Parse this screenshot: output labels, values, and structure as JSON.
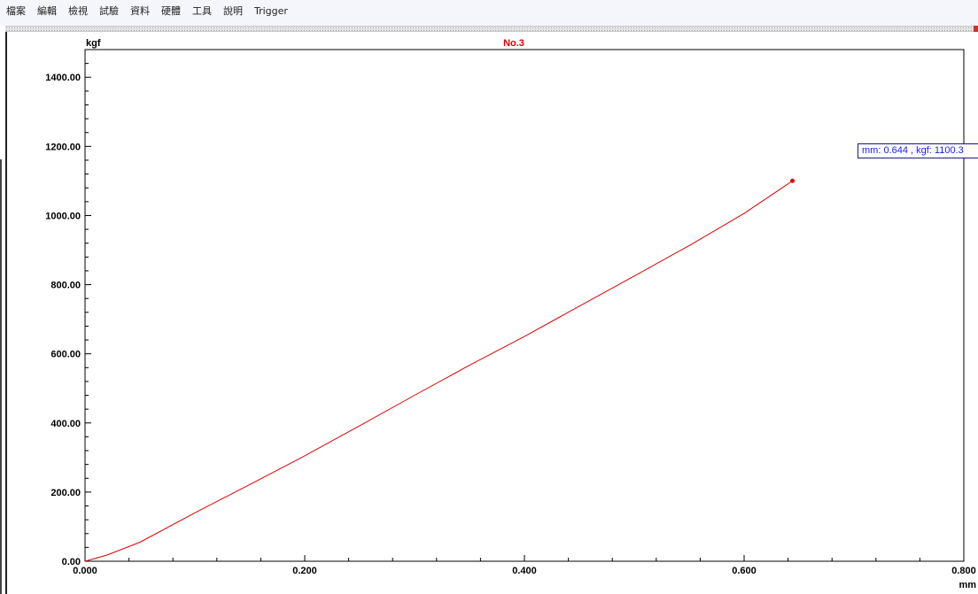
{
  "menu": {
    "items": [
      "檔案",
      "編輯",
      "檢視",
      "試驗",
      "資料",
      "硬體",
      "工具",
      "說明",
      "Trigger"
    ]
  },
  "tooltip": {
    "text": "mm: 0.644 , kgf: 1100.3"
  },
  "colors": {
    "curve": "#e00000",
    "title": "#e00000",
    "tooltip_text": "#1a1aff"
  },
  "chart_data": {
    "type": "line",
    "title": "No.3",
    "xlabel": "mm",
    "ylabel": "kgf",
    "xlim": [
      0,
      0.8
    ],
    "ylim": [
      0,
      1480
    ],
    "x_ticks": [
      "0.000",
      "0.200",
      "0.400",
      "0.600",
      "0.800"
    ],
    "y_ticks": [
      "0.00",
      "200.00",
      "400.00",
      "600.00",
      "800.00",
      "1000.00",
      "1200.00",
      "1400.00"
    ],
    "grid": false,
    "series": [
      {
        "x": [
          0.0,
          0.02,
          0.05,
          0.1,
          0.15,
          0.2,
          0.25,
          0.3,
          0.35,
          0.4,
          0.45,
          0.5,
          0.55,
          0.6,
          0.644
        ],
        "y": [
          0,
          18,
          55,
          140,
          222,
          305,
          392,
          480,
          567,
          650,
          738,
          825,
          913,
          1006,
          1100.3
        ]
      }
    ],
    "marker": {
      "x": 0.644,
      "y": 1100.3
    }
  }
}
